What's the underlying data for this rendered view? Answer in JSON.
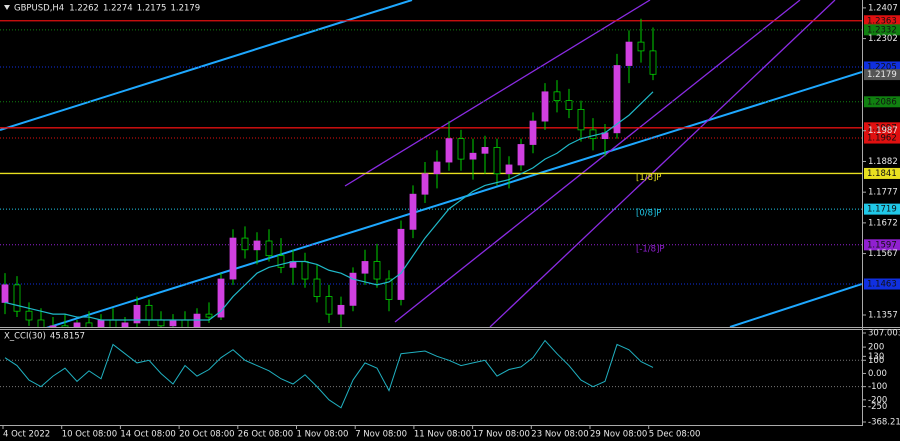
{
  "chart_data": [
    {
      "type": "candlestick",
      "symbol": "GBPUSD,H4",
      "quote": [
        1.2262,
        1.2274,
        1.2175,
        1.2179
      ],
      "categories": [
        "4 Oct 2022",
        "10 Oct 08:00",
        "14 Oct 08:00",
        "20 Oct 08:00",
        "26 Oct 08:00",
        "1 Nov 08:00",
        "7 Nov 08:00",
        "11 Nov 08:00",
        "17 Nov 08:00",
        "23 Nov 08:00",
        "29 Nov 08:00",
        "5 Dec 08:00"
      ],
      "candles": [
        [
          1.14,
          1.15,
          1.136,
          1.146
        ],
        [
          1.146,
          1.149,
          1.135,
          1.137
        ],
        [
          1.137,
          1.14,
          1.132,
          1.134
        ],
        [
          1.134,
          1.138,
          1.128,
          1.131
        ],
        [
          1.131,
          1.135,
          1.127,
          1.132
        ],
        [
          1.132,
          1.136,
          1.128,
          1.129
        ],
        [
          1.129,
          1.134,
          1.126,
          1.133
        ],
        [
          1.133,
          1.137,
          1.13,
          1.131
        ],
        [
          1.131,
          1.136,
          1.128,
          1.134
        ],
        [
          1.134,
          1.138,
          1.13,
          1.131
        ],
        [
          1.131,
          1.135,
          1.128,
          1.133
        ],
        [
          1.133,
          1.142,
          1.131,
          1.139
        ],
        [
          1.139,
          1.141,
          1.132,
          1.134
        ],
        [
          1.134,
          1.137,
          1.13,
          1.132
        ],
        [
          1.132,
          1.136,
          1.128,
          1.134
        ],
        [
          1.134,
          1.137,
          1.13,
          1.131
        ],
        [
          1.131,
          1.138,
          1.129,
          1.136
        ],
        [
          1.136,
          1.14,
          1.133,
          1.135
        ],
        [
          1.135,
          1.15,
          1.134,
          1.148
        ],
        [
          1.148,
          1.165,
          1.146,
          1.162
        ],
        [
          1.162,
          1.166,
          1.155,
          1.158
        ],
        [
          1.158,
          1.164,
          1.153,
          1.161
        ],
        [
          1.161,
          1.165,
          1.154,
          1.156
        ],
        [
          1.156,
          1.162,
          1.15,
          1.152
        ],
        [
          1.152,
          1.158,
          1.146,
          1.154
        ],
        [
          1.154,
          1.157,
          1.145,
          1.148
        ],
        [
          1.148,
          1.153,
          1.14,
          1.142
        ],
        [
          1.142,
          1.146,
          1.133,
          1.136
        ],
        [
          1.136,
          1.142,
          1.13,
          1.139
        ],
        [
          1.139,
          1.152,
          1.137,
          1.15
        ],
        [
          1.15,
          1.158,
          1.146,
          1.154
        ],
        [
          1.154,
          1.16,
          1.145,
          1.148
        ],
        [
          1.148,
          1.151,
          1.137,
          1.141
        ],
        [
          1.141,
          1.168,
          1.139,
          1.165
        ],
        [
          1.165,
          1.18,
          1.162,
          1.177
        ],
        [
          1.177,
          1.188,
          1.174,
          1.184
        ],
        [
          1.184,
          1.192,
          1.179,
          1.188
        ],
        [
          1.188,
          1.202,
          1.185,
          1.196
        ],
        [
          1.196,
          1.199,
          1.185,
          1.189
        ],
        [
          1.189,
          1.196,
          1.182,
          1.191
        ],
        [
          1.191,
          1.197,
          1.184,
          1.193
        ],
        [
          1.193,
          1.196,
          1.18,
          1.184
        ],
        [
          1.184,
          1.19,
          1.179,
          1.187
        ],
        [
          1.187,
          1.196,
          1.185,
          1.194
        ],
        [
          1.194,
          1.205,
          1.191,
          1.202
        ],
        [
          1.202,
          1.215,
          1.199,
          1.212
        ],
        [
          1.212,
          1.216,
          1.205,
          1.209
        ],
        [
          1.209,
          1.213,
          1.203,
          1.206
        ],
        [
          1.206,
          1.209,
          1.195,
          1.199
        ],
        [
          1.199,
          1.203,
          1.192,
          1.196
        ],
        [
          1.196,
          1.201,
          1.19,
          1.198
        ],
        [
          1.198,
          1.225,
          1.196,
          1.221
        ],
        [
          1.221,
          1.233,
          1.215,
          1.229
        ],
        [
          1.229,
          1.237,
          1.222,
          1.226
        ],
        [
          1.226,
          1.234,
          1.216,
          1.218
        ]
      ],
      "ma": [
        1.14,
        1.139,
        1.138,
        1.137,
        1.136,
        1.136,
        1.135,
        1.135,
        1.134,
        1.134,
        1.134,
        1.134,
        1.134,
        1.134,
        1.134,
        1.134,
        1.134,
        1.134,
        1.137,
        1.142,
        1.146,
        1.15,
        1.152,
        1.153,
        1.154,
        1.154,
        1.153,
        1.151,
        1.15,
        1.148,
        1.147,
        1.146,
        1.147,
        1.15,
        1.156,
        1.162,
        1.167,
        1.172,
        1.175,
        1.178,
        1.18,
        1.181,
        1.182,
        1.184,
        1.186,
        1.189,
        1.191,
        1.194,
        1.196,
        1.197,
        1.198,
        1.201,
        1.204,
        1.208,
        1.212
      ],
      "ma_color": "#20b8c8",
      "ylim": [
        1.1316,
        1.2434
      ],
      "yticks": [
        1.2407,
        1.2302,
        1.1987,
        1.1882,
        1.1777,
        1.1672,
        1.1567,
        1.1357
      ],
      "levels": [
        {
          "value": 1.2363,
          "color": "#e01010",
          "style": "solid"
        },
        {
          "value": 1.2332,
          "color": "#108010",
          "style": "dotted"
        },
        {
          "value": 1.2205,
          "color": "#1030e0",
          "style": "dotted"
        },
        {
          "value": 1.2086,
          "color": "#108010",
          "style": "dotted"
        },
        {
          "value": 1.1997,
          "color": "#e01010",
          "style": "solid"
        },
        {
          "value": 1.1962,
          "color": "#e01010",
          "style": "dotted"
        },
        {
          "value": 1.1841,
          "color": "#e8e020",
          "style": "solid",
          "murray": "[1/8]P"
        },
        {
          "value": 1.1719,
          "color": "#20c8e8",
          "style": "dotted",
          "murray": "[0/8]P"
        },
        {
          "value": 1.1597,
          "color": "#9020d0",
          "style": "dotted",
          "murray": "[-1/8]P"
        },
        {
          "value": 1.1463,
          "color": "#1030e0",
          "style": "dotted"
        }
      ]
    },
    {
      "type": "line",
      "title": "X_CCI(30)",
      "values": [
        120,
        60,
        -50,
        -100,
        -20,
        40,
        -60,
        20,
        -40,
        220,
        150,
        80,
        100,
        0,
        -80,
        60,
        -20,
        30,
        120,
        180,
        100,
        60,
        20,
        -40,
        -80,
        -10,
        -100,
        -200,
        -260,
        -50,
        80,
        40,
        -130,
        150,
        160,
        170,
        130,
        100,
        60,
        80,
        100,
        -20,
        30,
        50,
        120,
        250,
        150,
        60,
        -50,
        -100,
        -60,
        220,
        180,
        90,
        45.8157
      ],
      "color": "#20b0c0",
      "ylim": [
        -368.2199,
        307.0035
      ],
      "yticks": [
        307.0035,
        200,
        130,
        100,
        {
          "value": 0,
          "label": "0.00"
        },
        -100,
        -200,
        -250,
        -368.2199
      ],
      "levels": [
        100,
        -100
      ]
    }
  ]
}
